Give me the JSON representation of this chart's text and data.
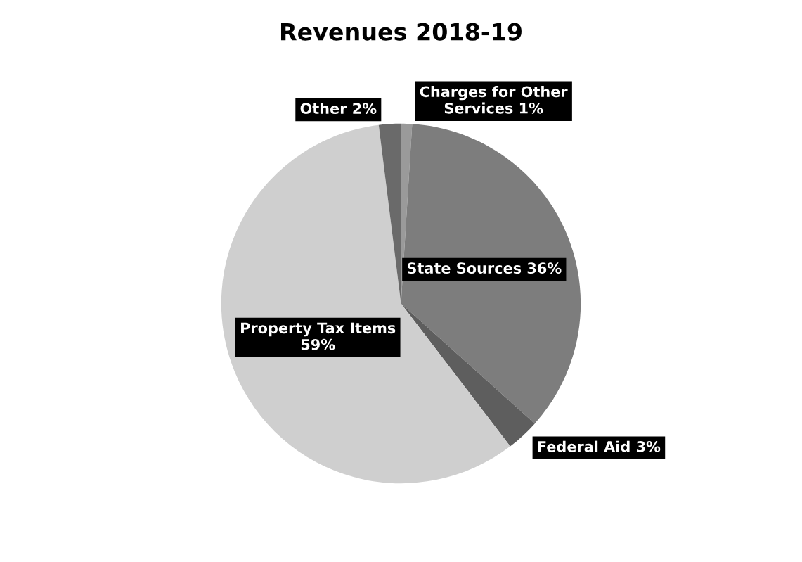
{
  "chart_data": {
    "type": "pie",
    "title": "Revenues 2018-19",
    "categories": [
      "Charges for Other Services",
      "State Sources",
      "Federal Aid",
      "Property Tax Items",
      "Other"
    ],
    "values": [
      1,
      36,
      3,
      59,
      2
    ],
    "colors": [
      "#9a9a9a",
      "#7d7d7d",
      "#5e5e5e",
      "#cfcfcf",
      "#6a6a6a"
    ],
    "value_labels": [
      "1%",
      "36%",
      "3%",
      "59%",
      "2%"
    ],
    "legend": false
  }
}
